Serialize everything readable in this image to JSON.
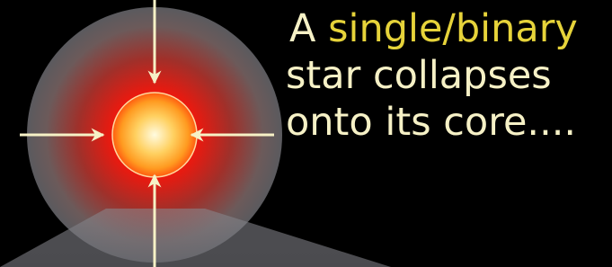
{
  "caption": {
    "line1_prefix": "A",
    "line1_highlight": "single/binary",
    "line2": "star collapses",
    "line3": "onto its core...."
  }
}
